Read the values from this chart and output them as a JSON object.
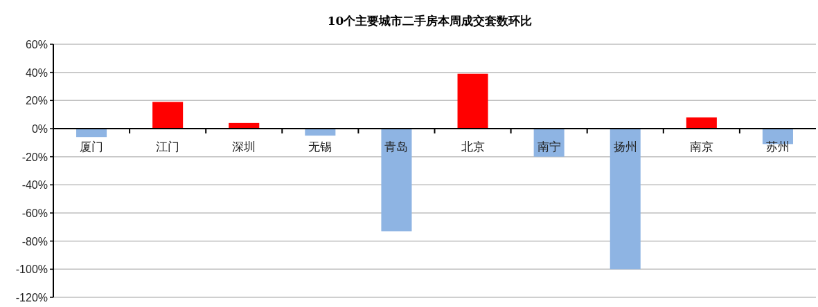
{
  "chart_data": {
    "type": "bar",
    "title": "10个主要城市二手房本周成交套数环比",
    "categories": [
      "厦门",
      "江门",
      "深圳",
      "无锡",
      "青岛",
      "北京",
      "南宁",
      "扬州",
      "南京",
      "苏州"
    ],
    "values": [
      -6,
      19,
      4,
      -5,
      -73,
      39,
      -20,
      -100,
      8,
      -11
    ],
    "colors": [
      "#8eb4e3",
      "#ff0000",
      "#ff0000",
      "#8eb4e3",
      "#8eb4e3",
      "#ff0000",
      "#8eb4e3",
      "#8eb4e3",
      "#ff0000",
      "#8eb4e3"
    ],
    "ylim": [
      -120,
      60
    ],
    "yticks": [
      {
        "value": -120,
        "label": "-120%"
      },
      {
        "value": -100,
        "label": "-100%"
      },
      {
        "value": -80,
        "label": "-80%"
      },
      {
        "value": -60,
        "label": "-60%"
      },
      {
        "value": -40,
        "label": "-40%"
      },
      {
        "value": -20,
        "label": "-20%"
      },
      {
        "value": 0,
        "label": "0%"
      },
      {
        "value": 20,
        "label": "20%"
      },
      {
        "value": 40,
        "label": "40%"
      },
      {
        "value": 60,
        "label": "60%"
      }
    ],
    "grid": "y"
  }
}
